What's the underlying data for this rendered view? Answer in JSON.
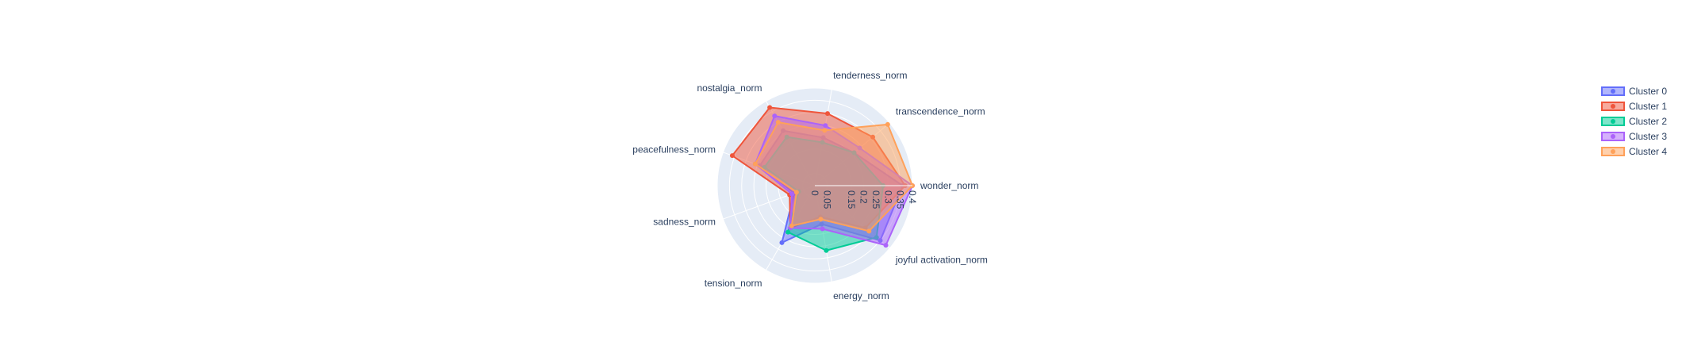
{
  "chart_data": {
    "type": "radar",
    "theta": [
      "wonder_norm",
      "transcendence_norm",
      "tenderness_norm",
      "nostalgia_norm",
      "peacefulness_norm",
      "sadness_norm",
      "tension_norm",
      "energy_norm",
      "joyful activation_norm"
    ],
    "radial_ticks": [
      "0",
      "0.05",
      "0.15",
      "0.2",
      "0.25",
      "0.3",
      "0.35",
      "0.4"
    ],
    "radial_tick_values": [
      0,
      0.05,
      0.15,
      0.2,
      0.25,
      0.3,
      0.35,
      0.4
    ],
    "radial_range": [
      0,
      0.4
    ],
    "series": [
      {
        "name": "Cluster 0",
        "color": "#636efa",
        "values": [
          0.36,
          0.21,
          0.2,
          0.26,
          0.24,
          0.09,
          0.27,
          0.16,
          0.35
        ]
      },
      {
        "name": "Cluster 1",
        "color": "#ef553b",
        "values": [
          0.37,
          0.31,
          0.3,
          0.37,
          0.36,
          0.11,
          0.2,
          0.13,
          0.27
        ]
      },
      {
        "name": "Cluster 2",
        "color": "#00cc96",
        "values": [
          0.28,
          0.21,
          0.18,
          0.23,
          0.22,
          0.07,
          0.22,
          0.27,
          0.33
        ]
      },
      {
        "name": "Cluster 3",
        "color": "#ab63fa",
        "values": [
          0.4,
          0.24,
          0.25,
          0.33,
          0.26,
          0.1,
          0.2,
          0.18,
          0.38
        ]
      },
      {
        "name": "Cluster 4",
        "color": "#ffa15a",
        "values": [
          0.4,
          0.39,
          0.23,
          0.3,
          0.26,
          0.08,
          0.19,
          0.14,
          0.29
        ]
      }
    ]
  }
}
